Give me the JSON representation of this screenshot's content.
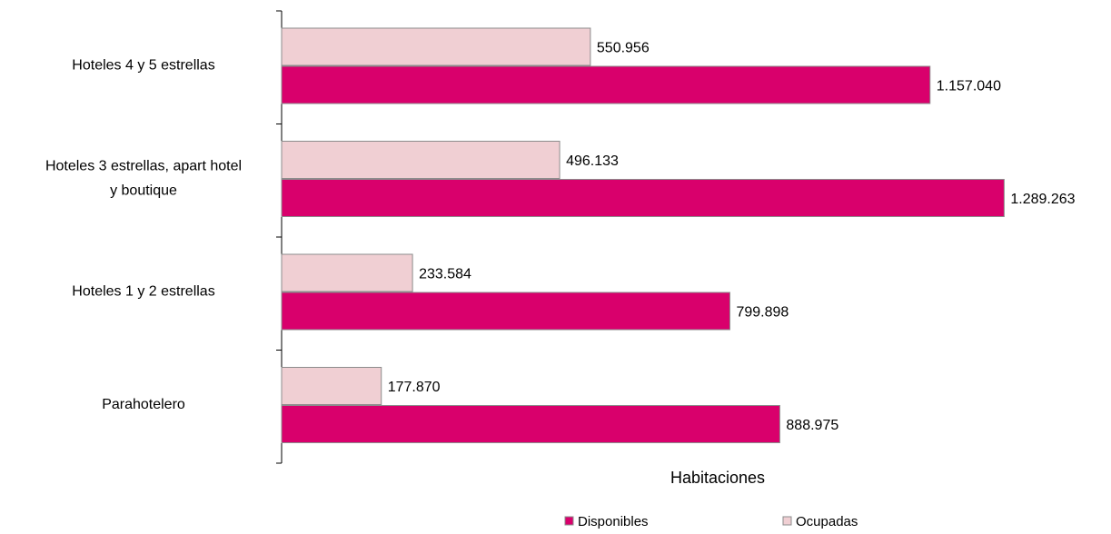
{
  "chart_data": {
    "type": "bar",
    "orientation": "horizontal",
    "categories": [
      [
        "Hoteles 4 y 5 estrellas"
      ],
      [
        "Hoteles 3 estrellas, apart hotel",
        "y boutique"
      ],
      [
        "Hoteles 1 y 2 estrellas"
      ],
      [
        "Parahotelero"
      ]
    ],
    "series": [
      {
        "name": "Ocupadas",
        "color": "#f0cfd3",
        "values": [
          550956,
          496133,
          233584,
          177870
        ],
        "labels": [
          "550.956",
          "496.133",
          "233.584",
          "177.870"
        ]
      },
      {
        "name": "Disponibles",
        "color": "#d9006c",
        "values": [
          1157040,
          1289263,
          799898,
          888975
        ],
        "labels": [
          "1.157.040",
          "1.289.263",
          "799.898",
          "888.975"
        ]
      }
    ],
    "xlabel": "Habitaciones",
    "xlim": [
      0,
      1360000
    ],
    "legend": {
      "position": "bottom",
      "items": [
        {
          "label": "Disponibles",
          "color": "#d9006c"
        },
        {
          "label": "Ocupadas",
          "color": "#f0cfd3"
        }
      ]
    }
  }
}
